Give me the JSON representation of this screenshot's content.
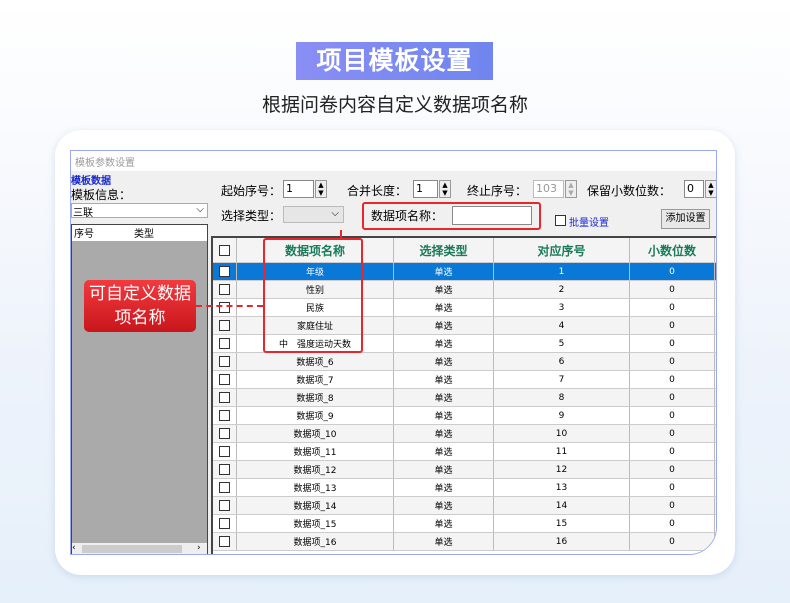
{
  "header": {
    "title": "项目模板设置",
    "subtitle": "根据问卷内容自定义数据项名称"
  },
  "window": {
    "title": "模板参数设置",
    "group_label": "模板数据",
    "template_info_label": "模板信息：",
    "template_value": "三联",
    "left_cols": [
      "序号",
      "类型"
    ]
  },
  "toolbar": {
    "start_label": "起始序号：",
    "start_value": "1",
    "merge_label": "合并长度：",
    "merge_value": "1",
    "end_label": "终止序号：",
    "end_value": "103",
    "decimals_label": "保留小数位数：",
    "decimals_value": "0",
    "type_label": "选择类型：",
    "type_value": "",
    "name_label": "数据项名称：",
    "name_value": "",
    "batch_label": "批量设置",
    "add_button": "添加设置"
  },
  "table": {
    "columns": [
      "数据项名称",
      "选择类型",
      "对应序号",
      "小数位数"
    ],
    "rows": [
      [
        "年级",
        "单选",
        "1",
        "0"
      ],
      [
        "性别",
        "单选",
        "2",
        "0"
      ],
      [
        "民族",
        "单选",
        "3",
        "0"
      ],
      [
        "家庭住址",
        "单选",
        "4",
        "0"
      ],
      [
        "中　强度运动天数",
        "单选",
        "5",
        "0"
      ],
      [
        "数据项_6",
        "单选",
        "6",
        "0"
      ],
      [
        "数据项_7",
        "单选",
        "7",
        "0"
      ],
      [
        "数据项_8",
        "单选",
        "8",
        "0"
      ],
      [
        "数据项_9",
        "单选",
        "9",
        "0"
      ],
      [
        "数据项_10",
        "单选",
        "10",
        "0"
      ],
      [
        "数据项_11",
        "单选",
        "11",
        "0"
      ],
      [
        "数据项_12",
        "单选",
        "12",
        "0"
      ],
      [
        "数据项_13",
        "单选",
        "13",
        "0"
      ],
      [
        "数据项_14",
        "单选",
        "14",
        "0"
      ],
      [
        "数据项_15",
        "单选",
        "15",
        "0"
      ],
      [
        "数据项_16",
        "单选",
        "16",
        "0"
      ]
    ],
    "selected_row": 0
  },
  "callout": {
    "text": "可自定义数据项名称"
  },
  "colors": {
    "accent": "#7b8af0",
    "selection": "#0a78d7",
    "highlight": "#e8262b"
  }
}
